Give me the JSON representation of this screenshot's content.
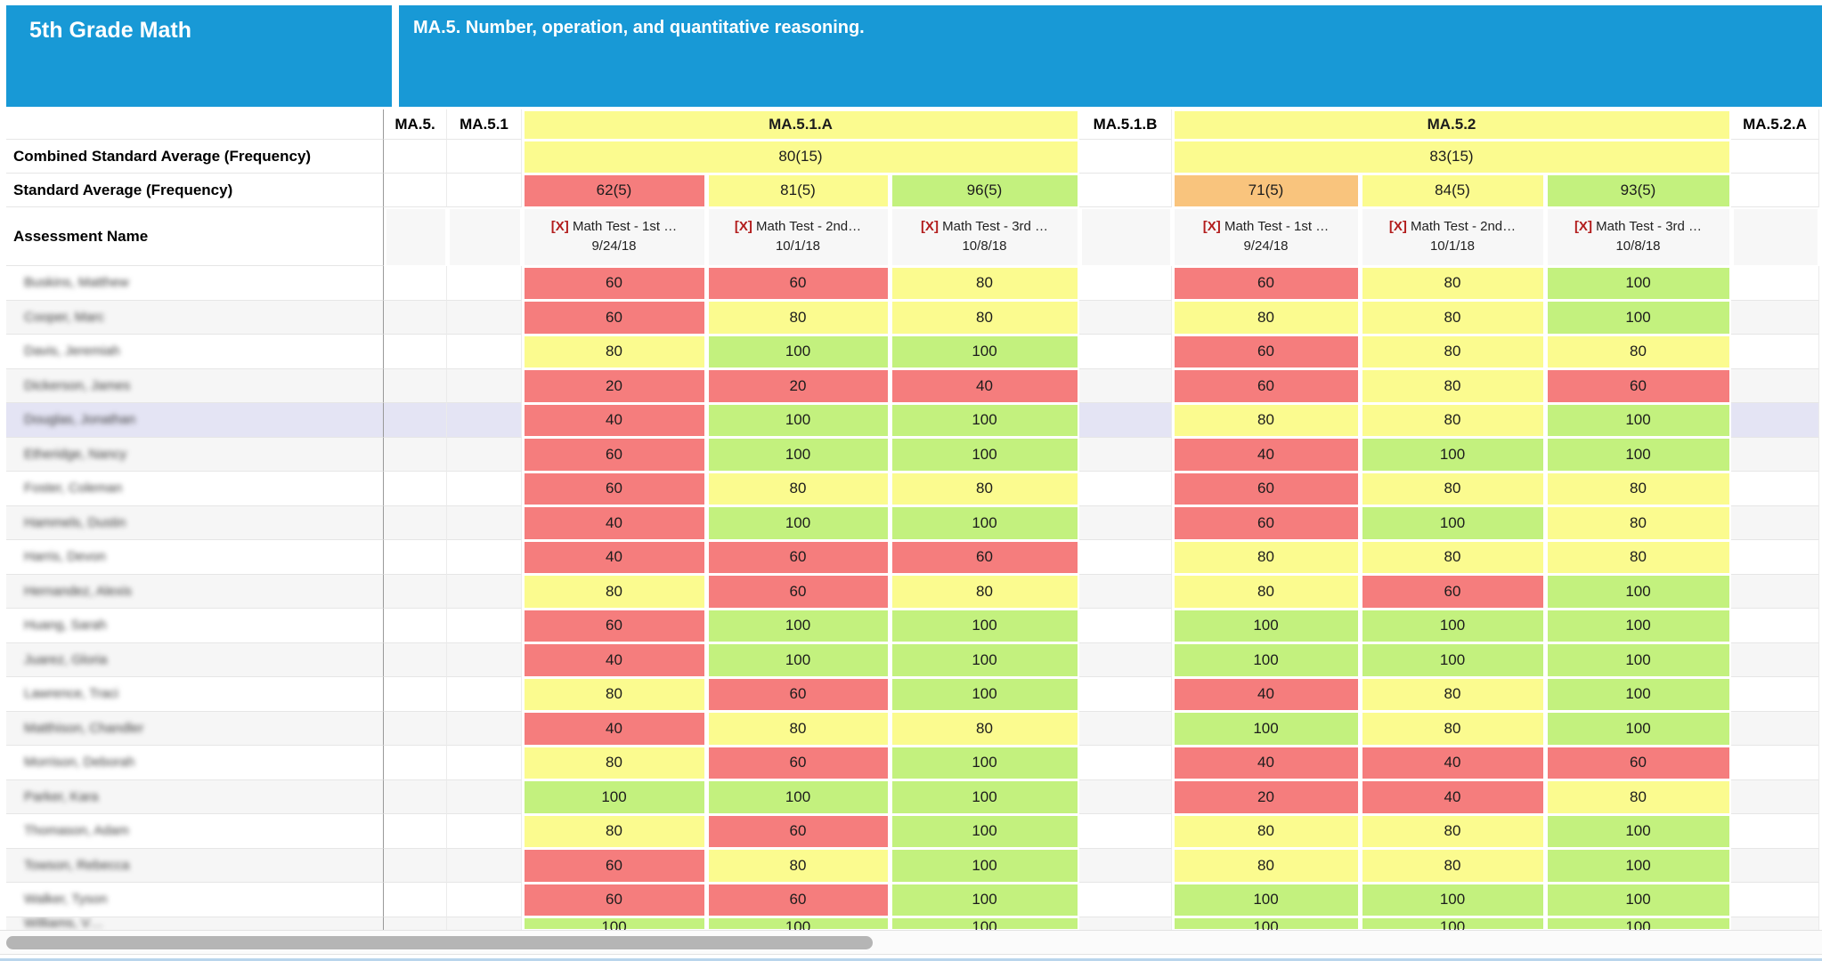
{
  "header": {
    "class_title": "5th Grade Math",
    "standard_banner": "MA.5. Number, operation, and quantitative reasoning."
  },
  "row_labels": {
    "combined_average": "Combined Standard Average (Frequency)",
    "standard_average": "Standard Average (Frequency)",
    "assessment_name": "Assessment Name"
  },
  "columns": [
    {
      "code": "MA.5.",
      "type": "spacer"
    },
    {
      "code": "MA.5.1",
      "type": "spacer"
    },
    {
      "code": "MA.5.1.A",
      "type": "group",
      "combined_average": "80(15)",
      "tests": [
        {
          "delete_label": "[X]",
          "name": "Math Test - 1st …",
          "date": "9/24/18",
          "average": "62(5)",
          "average_value": 62
        },
        {
          "delete_label": "[X]",
          "name": "Math Test - 2nd…",
          "date": "10/1/18",
          "average": "81(5)",
          "average_value": 81
        },
        {
          "delete_label": "[X]",
          "name": "Math Test - 3rd …",
          "date": "10/8/18",
          "average": "96(5)",
          "average_value": 96
        }
      ]
    },
    {
      "code": "MA.5.1.B",
      "type": "spacer"
    },
    {
      "code": "MA.5.2",
      "type": "group",
      "combined_average": "83(15)",
      "tests": [
        {
          "delete_label": "[X]",
          "name": "Math Test - 1st …",
          "date": "9/24/18",
          "average": "71(5)",
          "average_value": 71
        },
        {
          "delete_label": "[X]",
          "name": "Math Test - 2nd…",
          "date": "10/1/18",
          "average": "84(5)",
          "average_value": 84
        },
        {
          "delete_label": "[X]",
          "name": "Math Test - 3rd …",
          "date": "10/8/18",
          "average": "93(5)",
          "average_value": 93
        }
      ]
    },
    {
      "code": "MA.5.2.A",
      "type": "spacer"
    }
  ],
  "students": [
    {
      "name": "Buskins, Matthew",
      "scores": [
        60,
        60,
        80,
        60,
        80,
        100
      ]
    },
    {
      "name": "Cooper, Marc",
      "scores": [
        60,
        80,
        80,
        80,
        80,
        100
      ]
    },
    {
      "name": "Davis, Jeremiah",
      "scores": [
        80,
        100,
        100,
        60,
        80,
        80
      ]
    },
    {
      "name": "Dickerson, James",
      "scores": [
        20,
        20,
        40,
        60,
        80,
        60
      ]
    },
    {
      "name": "Douglas, Jonathan",
      "scores": [
        40,
        100,
        100,
        80,
        80,
        100
      ]
    },
    {
      "name": "Etheridge, Nancy",
      "scores": [
        60,
        100,
        100,
        40,
        100,
        100
      ]
    },
    {
      "name": "Foster, Coleman",
      "scores": [
        60,
        80,
        80,
        60,
        80,
        80
      ]
    },
    {
      "name": "Hammels, Dustin",
      "scores": [
        40,
        100,
        100,
        60,
        100,
        80
      ]
    },
    {
      "name": "Harris, Devon",
      "scores": [
        40,
        60,
        60,
        80,
        80,
        80
      ]
    },
    {
      "name": "Hernandez, Alexis",
      "scores": [
        80,
        60,
        80,
        80,
        60,
        100
      ]
    },
    {
      "name": "Huang, Sarah",
      "scores": [
        60,
        100,
        100,
        100,
        100,
        100
      ]
    },
    {
      "name": "Juarez, Gloria",
      "scores": [
        40,
        100,
        100,
        100,
        100,
        100
      ]
    },
    {
      "name": "Lawrence, Traci",
      "scores": [
        80,
        60,
        100,
        40,
        80,
        100
      ]
    },
    {
      "name": "Matthison, Chandler",
      "scores": [
        40,
        80,
        80,
        100,
        80,
        100
      ]
    },
    {
      "name": "Morrison, Deborah",
      "scores": [
        80,
        60,
        100,
        40,
        40,
        60
      ]
    },
    {
      "name": "Parker, Kara",
      "scores": [
        100,
        100,
        100,
        20,
        40,
        80
      ]
    },
    {
      "name": "Thomason, Adam",
      "scores": [
        80,
        60,
        100,
        80,
        80,
        100
      ]
    },
    {
      "name": "Towson, Rebecca",
      "scores": [
        60,
        80,
        100,
        80,
        80,
        100
      ]
    },
    {
      "name": "Walker, Tyson",
      "scores": [
        60,
        60,
        100,
        100,
        100,
        100
      ]
    },
    {
      "name": "Williams, V…",
      "scores": [
        100,
        100,
        100,
        100,
        100,
        100
      ],
      "partial": true
    }
  ],
  "highlighted_student_index": 4,
  "score_colors": {
    "green": "#c3f17e",
    "yellow": "#fbfb8f",
    "orange": "#f9c47d",
    "red": "#f57d7d",
    "green_min": 90,
    "yellow_min": 80,
    "orange_min": 70
  },
  "theme": {
    "header_blue": "#1899d6",
    "highlight_row": "#e4e4f4",
    "stripe_gray": "#f6f6f6",
    "delete_link_red": "#b21c1c"
  }
}
